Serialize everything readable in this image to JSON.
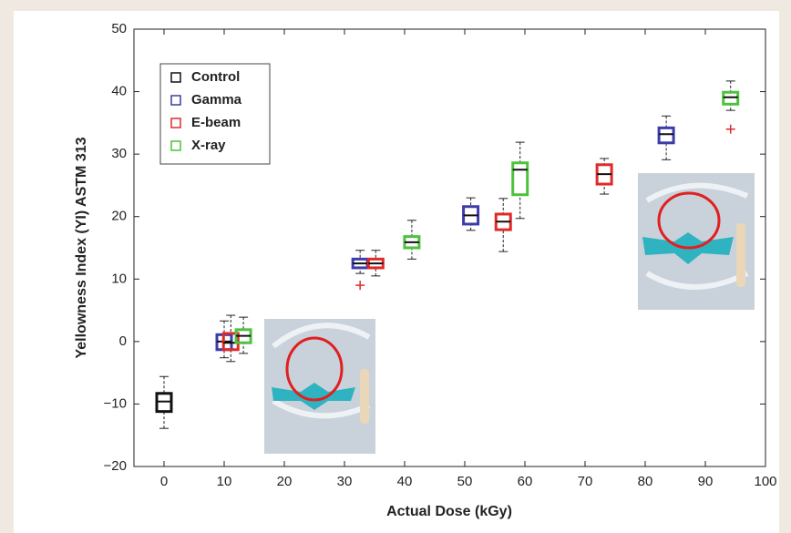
{
  "chart_data": {
    "type": "boxplot",
    "xlabel": "Actual Dose (kGy)",
    "ylabel": "Yellowness Index (YI) ASTM 313",
    "xlim": [
      -5,
      100
    ],
    "ylim": [
      -20,
      50
    ],
    "xticks": [
      0,
      10,
      20,
      30,
      40,
      50,
      60,
      70,
      80,
      90,
      100
    ],
    "yticks": [
      {
        "value": -20,
        "label": "−20"
      },
      {
        "value": -10,
        "label": "−10"
      },
      0,
      10,
      20,
      30,
      40,
      50
    ],
    "legend": "upper left",
    "series": [
      {
        "name": "Control",
        "color": "#111111",
        "boxes": [
          {
            "x": 0,
            "whislo": -13.9,
            "q1": -11.2,
            "med": -9.6,
            "q3": -8.3,
            "whishi": -5.6,
            "outliers": []
          }
        ]
      },
      {
        "name": "Gamma",
        "color": "#3c3caa",
        "boxes": [
          {
            "x": 10,
            "whislo": -2.6,
            "q1": -1.3,
            "med": 0,
            "q3": 1.1,
            "whishi": 3.3,
            "outliers": []
          },
          {
            "x": 32.6,
            "whislo": 10.9,
            "q1": 11.8,
            "med": 12.5,
            "q3": 13.2,
            "whishi": 14.6,
            "outliers": [
              9
            ]
          },
          {
            "x": 51,
            "whislo": 17.8,
            "q1": 18.8,
            "med": 20.2,
            "q3": 21.6,
            "whishi": 23,
            "outliers": []
          },
          {
            "x": 83.5,
            "whislo": 29.1,
            "q1": 31.8,
            "med": 33.2,
            "q3": 34.2,
            "whishi": 36.1,
            "outliers": []
          }
        ]
      },
      {
        "name": "E-beam",
        "color": "#e02a2a",
        "boxes": [
          {
            "x": 11.1,
            "whislo": -3.2,
            "q1": -1.3,
            "med": -0.2,
            "q3": 1.3,
            "whishi": 4.2,
            "outliers": []
          },
          {
            "x": 35.2,
            "whislo": 10.5,
            "q1": 11.8,
            "med": 12.5,
            "q3": 13.2,
            "whishi": 14.6,
            "outliers": []
          },
          {
            "x": 56.4,
            "whislo": 14.4,
            "q1": 17.9,
            "med": 19.2,
            "q3": 20.4,
            "whishi": 22.9,
            "outliers": []
          },
          {
            "x": 73.2,
            "whislo": 23.6,
            "q1": 25.2,
            "med": 26.8,
            "q3": 28.3,
            "whishi": 29.3,
            "outliers": []
          }
        ]
      },
      {
        "name": "X-ray",
        "color": "#4ec13e",
        "boxes": [
          {
            "x": 13.2,
            "whislo": -1.9,
            "q1": -0.2,
            "med": 0.9,
            "q3": 1.9,
            "whishi": 3.9,
            "outliers": []
          },
          {
            "x": 41.2,
            "whislo": 13.2,
            "q1": 15,
            "med": 15.9,
            "q3": 16.8,
            "whishi": 19.4,
            "outliers": []
          },
          {
            "x": 59.2,
            "whislo": 19.7,
            "q1": 23.5,
            "med": 27.5,
            "q3": 28.6,
            "whishi": 31.9,
            "outliers": []
          },
          {
            "x": 94.2,
            "whislo": 37,
            "q1": 38,
            "med": 39.1,
            "q3": 39.9,
            "whishi": 41.7,
            "outliers": [
              34
            ]
          }
        ]
      }
    ]
  }
}
